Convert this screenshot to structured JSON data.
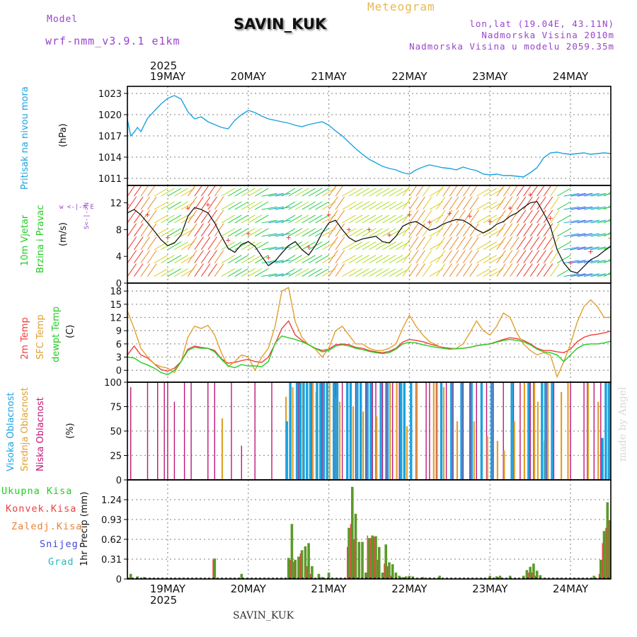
{
  "header": {
    "model_label": "Model",
    "model_name": "wrf-nmm_v3.9.1 e1km",
    "station": "SAVIN_KUK",
    "meteogram_label": "Meteogram",
    "lonlat": "lon,lat (19.04E, 43.11N)",
    "elevation": "Nadmorska Visina 2010m",
    "model_elevation": "Nadmorska Visina u modelu 2059.35m",
    "footer_station": "SAVIN_KUK",
    "watermark": "made by Angel"
  },
  "axis": {
    "year": "2025",
    "days": [
      "19MAY",
      "20MAY",
      "21MAY",
      "22MAY",
      "23MAY",
      "24MAY"
    ]
  },
  "colors": {
    "pressure": "#1aa3e0",
    "temp2m": "#f03c3c",
    "sfc": "#e0a030",
    "dewpt": "#22cc22",
    "high_cloud": "#1aa3e0",
    "mid_cloud": "#e0a030",
    "low_cloud": "#c01878",
    "total_precip": "#5a9a28",
    "conv_precip": "#e84040",
    "frozen": "#f08030",
    "snow": "#4444dd",
    "hail": "#22bbbb"
  },
  "panels": {
    "pressure": {
      "label1": "Pritisak na nivou mora",
      "unit": "(hPa)"
    },
    "wind": {
      "label1": "10m Vjetar",
      "label2": "Brzina i Pravac",
      "unit": "(m/s)",
      "compass": "w <-|-> E",
      "compass2": "S<-|->N"
    },
    "temp": {
      "label1": "2m Temp",
      "label2": "SFC Temp",
      "label3": "dewpt Temp",
      "unit": "(C)"
    },
    "cloud": {
      "label1": "Visoka Oblacnost",
      "label2": "Srednja Oblacnost",
      "label3": "Niska Oblacnost",
      "unit": "(%)"
    },
    "precip": {
      "unit_label": "1hr Precip (mm)",
      "legend": [
        "Ukupna Kisa",
        "Konvek.Kisa",
        "Zaledj.Kisa",
        "Snijeg",
        "Grad"
      ]
    }
  },
  "chart_data": [
    {
      "type": "line",
      "title": "",
      "ylabel": "Pritisak na nivou mora (hPa)",
      "ylim": [
        1010,
        1024
      ],
      "yticks": [
        1011,
        1014,
        1017,
        1020,
        1023
      ],
      "x_hours": [
        0,
        1,
        2,
        3,
        4,
        6,
        8,
        10,
        12,
        14,
        16,
        18,
        20,
        22,
        24,
        26,
        28,
        30,
        32,
        34,
        36,
        38,
        40,
        42,
        44,
        46,
        48,
        50,
        52,
        54,
        56,
        58,
        60,
        62,
        64,
        66,
        68,
        70,
        72,
        74,
        76,
        78,
        80,
        82,
        84,
        86,
        88,
        90,
        92,
        94,
        96,
        98,
        100,
        102,
        104,
        106,
        108,
        110,
        112,
        114,
        116,
        118,
        120,
        122,
        124,
        126,
        128,
        130,
        132,
        134,
        136,
        138,
        140,
        142,
        144
      ],
      "series": [
        {
          "name": "",
          "values": [
            1019.3,
            1017.0,
            1017.5,
            1018.2,
            1017.6,
            1019.5,
            1020.5,
            1021.5,
            1022.3,
            1022.7,
            1022.2,
            1020.4,
            1019.4,
            1019.7,
            1019.0,
            1018.6,
            1018.2,
            1018.0,
            1019.2,
            1020.0,
            1020.6,
            1020.3,
            1019.8,
            1019.4,
            1019.2,
            1019.0,
            1018.8,
            1018.5,
            1018.3,
            1018.6,
            1018.8,
            1019.0,
            1018.5,
            1017.7,
            1017.0,
            1016.1,
            1015.2,
            1014.4,
            1013.7,
            1013.2,
            1012.7,
            1012.4,
            1012.2,
            1011.8,
            1011.6,
            1012.2,
            1012.6,
            1012.9,
            1012.7,
            1012.5,
            1012.4,
            1012.2,
            1012.6,
            1012.3,
            1012.1,
            1011.6,
            1011.5,
            1011.6,
            1011.4,
            1011.4,
            1011.3,
            1011.2,
            1011.8,
            1012.5,
            1013.9,
            1014.6,
            1014.7,
            1014.5,
            1014.4,
            1014.5,
            1014.6,
            1014.4,
            1014.5,
            1014.6,
            1014.5
          ]
        }
      ]
    },
    {
      "type": "line",
      "title": "",
      "ylabel": "10m Vjetar Brzina i Pravac (m/s)",
      "ylim": [
        0,
        14.6
      ],
      "yticks": [
        0,
        4,
        8,
        12
      ],
      "x_hours": [
        0,
        2,
        4,
        6,
        8,
        10,
        12,
        14,
        16,
        18,
        20,
        22,
        24,
        26,
        28,
        30,
        32,
        34,
        36,
        38,
        40,
        42,
        44,
        46,
        48,
        50,
        52,
        54,
        56,
        58,
        60,
        62,
        64,
        66,
        68,
        70,
        72,
        74,
        76,
        78,
        80,
        82,
        84,
        86,
        88,
        90,
        92,
        94,
        96,
        98,
        100,
        102,
        104,
        106,
        108,
        110,
        112,
        114,
        116,
        118,
        120,
        122,
        124,
        126,
        128,
        130,
        132,
        134,
        136,
        138,
        140,
        142,
        144
      ],
      "series": [
        {
          "name": "",
          "values": [
            10.5,
            11.0,
            10.2,
            9.0,
            7.8,
            6.5,
            5.6,
            6.0,
            7.2,
            10.0,
            11.3,
            11.0,
            10.5,
            9.0,
            7.0,
            5.2,
            4.6,
            5.8,
            6.2,
            5.5,
            4.0,
            2.6,
            3.3,
            4.5,
            5.6,
            6.2,
            5.0,
            4.2,
            5.6,
            7.5,
            9.0,
            9.4,
            8.0,
            6.8,
            6.2,
            6.6,
            6.8,
            7.0,
            6.2,
            6.0,
            7.0,
            8.5,
            9.0,
            9.2,
            8.6,
            7.9,
            8.2,
            8.8,
            9.2,
            9.5,
            9.4,
            8.8,
            8.0,
            7.5,
            8.0,
            8.8,
            9.2,
            10.0,
            10.5,
            11.3,
            12.0,
            12.2,
            10.5,
            8.5,
            5.0,
            3.0,
            1.8,
            1.5,
            2.5,
            3.5,
            4.0,
            4.8,
            5.5
          ]
        }
      ]
    },
    {
      "type": "line",
      "title": "",
      "ylabel": "Temp (C)",
      "ylim": [
        -2.7,
        19.8
      ],
      "yticks": [
        0,
        3,
        6,
        9,
        12,
        15,
        18
      ],
      "x_hours": [
        0,
        2,
        4,
        6,
        8,
        10,
        12,
        14,
        16,
        18,
        20,
        22,
        24,
        26,
        28,
        30,
        32,
        34,
        36,
        38,
        40,
        42,
        44,
        46,
        48,
        50,
        52,
        54,
        56,
        58,
        60,
        62,
        64,
        66,
        68,
        70,
        72,
        74,
        76,
        78,
        80,
        82,
        84,
        86,
        88,
        90,
        92,
        94,
        96,
        98,
        100,
        102,
        104,
        106,
        108,
        110,
        112,
        114,
        116,
        118,
        120,
        122,
        124,
        126,
        128,
        130,
        132,
        134,
        136,
        138,
        140,
        142,
        144
      ],
      "series": [
        {
          "name": "2m Temp",
          "values": [
            3.5,
            5.5,
            3.5,
            2.8,
            1.5,
            0.2,
            -0.2,
            0.5,
            2.0,
            4.8,
            5.5,
            5.2,
            5.0,
            4.5,
            2.6,
            1.6,
            1.8,
            2.2,
            2.5,
            2.0,
            1.8,
            3.0,
            6.0,
            9.5,
            11.2,
            8.0,
            6.8,
            5.8,
            5.0,
            4.5,
            4.8,
            5.8,
            6.0,
            5.8,
            5.2,
            5.0,
            4.5,
            4.2,
            4.0,
            4.3,
            5.0,
            6.4,
            7.0,
            6.8,
            6.5,
            6.0,
            5.6,
            5.2,
            5.0,
            4.9,
            5.0,
            5.2,
            5.6,
            5.8,
            6.0,
            6.5,
            7.0,
            7.4,
            7.2,
            6.8,
            6.0,
            5.0,
            4.5,
            4.5,
            4.2,
            4.0,
            4.8,
            6.5,
            7.5,
            8.0,
            8.2,
            8.5,
            8.9
          ]
        },
        {
          "name": "SFC Temp",
          "values": [
            13.5,
            9.5,
            5.0,
            3.0,
            1.5,
            0.8,
            0.5,
            -0.5,
            2.0,
            7.5,
            10.0,
            9.5,
            10.2,
            8.0,
            4.0,
            0.8,
            2.0,
            3.5,
            3.0,
            0.0,
            3.0,
            5.0,
            10.0,
            18.0,
            18.8,
            11.0,
            7.5,
            5.8,
            4.8,
            3.0,
            5.0,
            9.0,
            10.0,
            8.0,
            6.0,
            6.0,
            5.0,
            4.5,
            4.5,
            5.0,
            6.0,
            9.5,
            12.5,
            10.0,
            8.0,
            6.5,
            5.8,
            5.0,
            4.8,
            5.0,
            6.0,
            8.5,
            11.2,
            9.0,
            8.0,
            10.0,
            13.0,
            12.0,
            8.5,
            6.0,
            4.5,
            3.5,
            4.0,
            3.5,
            -1.5,
            2.0,
            6.0,
            11.0,
            14.5,
            16.0,
            14.5,
            12.0,
            12.0
          ]
        },
        {
          "name": "dewpt Temp",
          "values": [
            3.0,
            2.8,
            1.8,
            1.2,
            0.5,
            -0.5,
            -1.0,
            0.0,
            2.0,
            4.5,
            5.2,
            5.0,
            5.0,
            4.2,
            2.5,
            1.0,
            0.6,
            1.3,
            1.0,
            1.0,
            0.8,
            2.0,
            6.2,
            7.8,
            7.4,
            7.0,
            6.5,
            5.8,
            5.0,
            4.2,
            4.5,
            5.5,
            5.8,
            5.5,
            5.0,
            4.7,
            4.3,
            4.0,
            3.8,
            4.0,
            4.8,
            6.0,
            6.4,
            6.2,
            5.8,
            5.5,
            5.2,
            5.0,
            4.8,
            4.9,
            5.0,
            5.2,
            5.6,
            5.8,
            6.0,
            6.4,
            6.8,
            7.0,
            6.8,
            6.5,
            5.8,
            4.8,
            4.2,
            4.0,
            3.5,
            2.0,
            3.5,
            5.0,
            5.8,
            6.0,
            6.0,
            6.2,
            6.6
          ]
        }
      ]
    },
    {
      "type": "bar",
      "title": "",
      "ylabel": "Oblacnost (%)",
      "ylim": [
        0,
        100
      ],
      "yticks": [
        0,
        25,
        50,
        75,
        100
      ],
      "series": [
        {
          "name": "Niska Oblacnost",
          "x_hours": [
            1,
            6,
            9,
            11,
            12,
            14,
            17,
            19,
            24,
            26,
            31,
            34,
            38,
            43,
            51,
            55,
            58,
            62,
            64,
            68,
            71,
            73,
            74,
            76,
            77,
            79,
            81,
            86,
            89,
            90,
            92,
            95,
            97,
            100,
            102,
            104,
            107,
            109,
            112,
            115,
            117,
            120,
            121,
            125,
            127,
            132,
            136,
            137,
            139,
            141
          ],
          "values": [
            95,
            100,
            100,
            100,
            100,
            80,
            100,
            100,
            100,
            100,
            100,
            35,
            100,
            100,
            100,
            100,
            100,
            100,
            100,
            100,
            100,
            100,
            100,
            100,
            100,
            100,
            100,
            100,
            100,
            100,
            100,
            100,
            100,
            100,
            100,
            100,
            100,
            100,
            100,
            100,
            100,
            100,
            100,
            100,
            100,
            100,
            100,
            100,
            100,
            100
          ]
        },
        {
          "name": "Srednja Oblacnost",
          "x_hours": [
            28,
            47,
            49,
            52,
            55,
            56,
            60,
            62,
            63,
            67,
            70,
            74,
            78,
            80,
            83,
            86,
            91,
            92,
            94,
            98,
            103,
            107,
            110,
            112,
            115,
            118,
            121,
            122,
            124,
            125,
            129,
            131,
            137,
            140,
            143
          ],
          "values": [
            63,
            85,
            95,
            100,
            100,
            90,
            100,
            85,
            80,
            75,
            70,
            65,
            100,
            100,
            55,
            100,
            100,
            100,
            95,
            60,
            60,
            45,
            40,
            30,
            60,
            100,
            100,
            80,
            40,
            100,
            90,
            100,
            100,
            80,
            100
          ]
        },
        {
          "name": "Visoka Oblacnost",
          "x_hours": [
            47,
            48,
            50,
            51,
            52,
            53,
            54,
            56,
            57,
            58,
            59,
            61,
            62,
            65,
            66,
            68,
            69,
            71,
            72,
            75,
            77,
            81,
            82,
            84,
            93,
            96,
            99,
            102,
            105,
            108,
            114,
            119,
            123,
            124,
            126,
            141,
            142,
            143
          ],
          "values": [
            60,
            100,
            100,
            100,
            100,
            100,
            100,
            100,
            100,
            100,
            100,
            100,
            100,
            100,
            100,
            100,
            100,
            100,
            100,
            100,
            100,
            100,
            100,
            100,
            100,
            100,
            100,
            100,
            100,
            100,
            100,
            100,
            100,
            100,
            100,
            43,
            100,
            100
          ]
        }
      ]
    },
    {
      "type": "bar",
      "title": "",
      "ylabel": "1hr Precip (mm)",
      "ylim": [
        0,
        1.55
      ],
      "yticks": [
        0,
        0.31,
        0.62,
        0.93,
        1.24
      ],
      "series": [
        {
          "name": "Ukupna Kisa",
          "x_hours": [
            1,
            3,
            5,
            26,
            34,
            48,
            49,
            50,
            51,
            52,
            53,
            54,
            55,
            57,
            58,
            60,
            66,
            67,
            68,
            69,
            70,
            71,
            72,
            73,
            74,
            75,
            76,
            77,
            78,
            79,
            80,
            81,
            82,
            83,
            84,
            85,
            88,
            90,
            93,
            108,
            110,
            111,
            114,
            118,
            119,
            120,
            121,
            122,
            123,
            139,
            141,
            142,
            143,
            144
          ],
          "values": [
            0.08,
            0.04,
            0.03,
            0.32,
            0.08,
            0.33,
            0.86,
            0.3,
            0.35,
            0.45,
            0.51,
            0.56,
            0.2,
            0.08,
            0.03,
            0.1,
            0.8,
            1.44,
            1.02,
            0.58,
            0.58,
            0.1,
            0.64,
            0.68,
            0.67,
            0.5,
            0.1,
            0.54,
            0.26,
            0.23,
            0.1,
            0.05,
            0.03,
            0.04,
            0.05,
            0.04,
            0.03,
            0.02,
            0.05,
            0.05,
            0.04,
            0.05,
            0.05,
            0.05,
            0.14,
            0.19,
            0.24,
            0.13,
            0.06,
            0.05,
            0.3,
            0.75,
            1.2,
            0.92
          ]
        },
        {
          "name": "Konvek.Kisa",
          "x_hours": [
            26,
            49,
            50,
            52,
            54,
            55,
            66,
            67,
            68,
            72,
            73,
            74,
            75,
            77,
            78,
            79,
            120,
            121,
            122,
            141,
            142,
            143,
            144
          ],
          "values": [
            0.3,
            0.3,
            0.27,
            0.4,
            0.2,
            0.08,
            0.5,
            0.86,
            0.62,
            0.68,
            0.64,
            0.66,
            0.3,
            0.24,
            0.2,
            0.05,
            0.1,
            0.1,
            0.05,
            0.08,
            0.56,
            0.8,
            0.92
          ]
        }
      ]
    }
  ]
}
